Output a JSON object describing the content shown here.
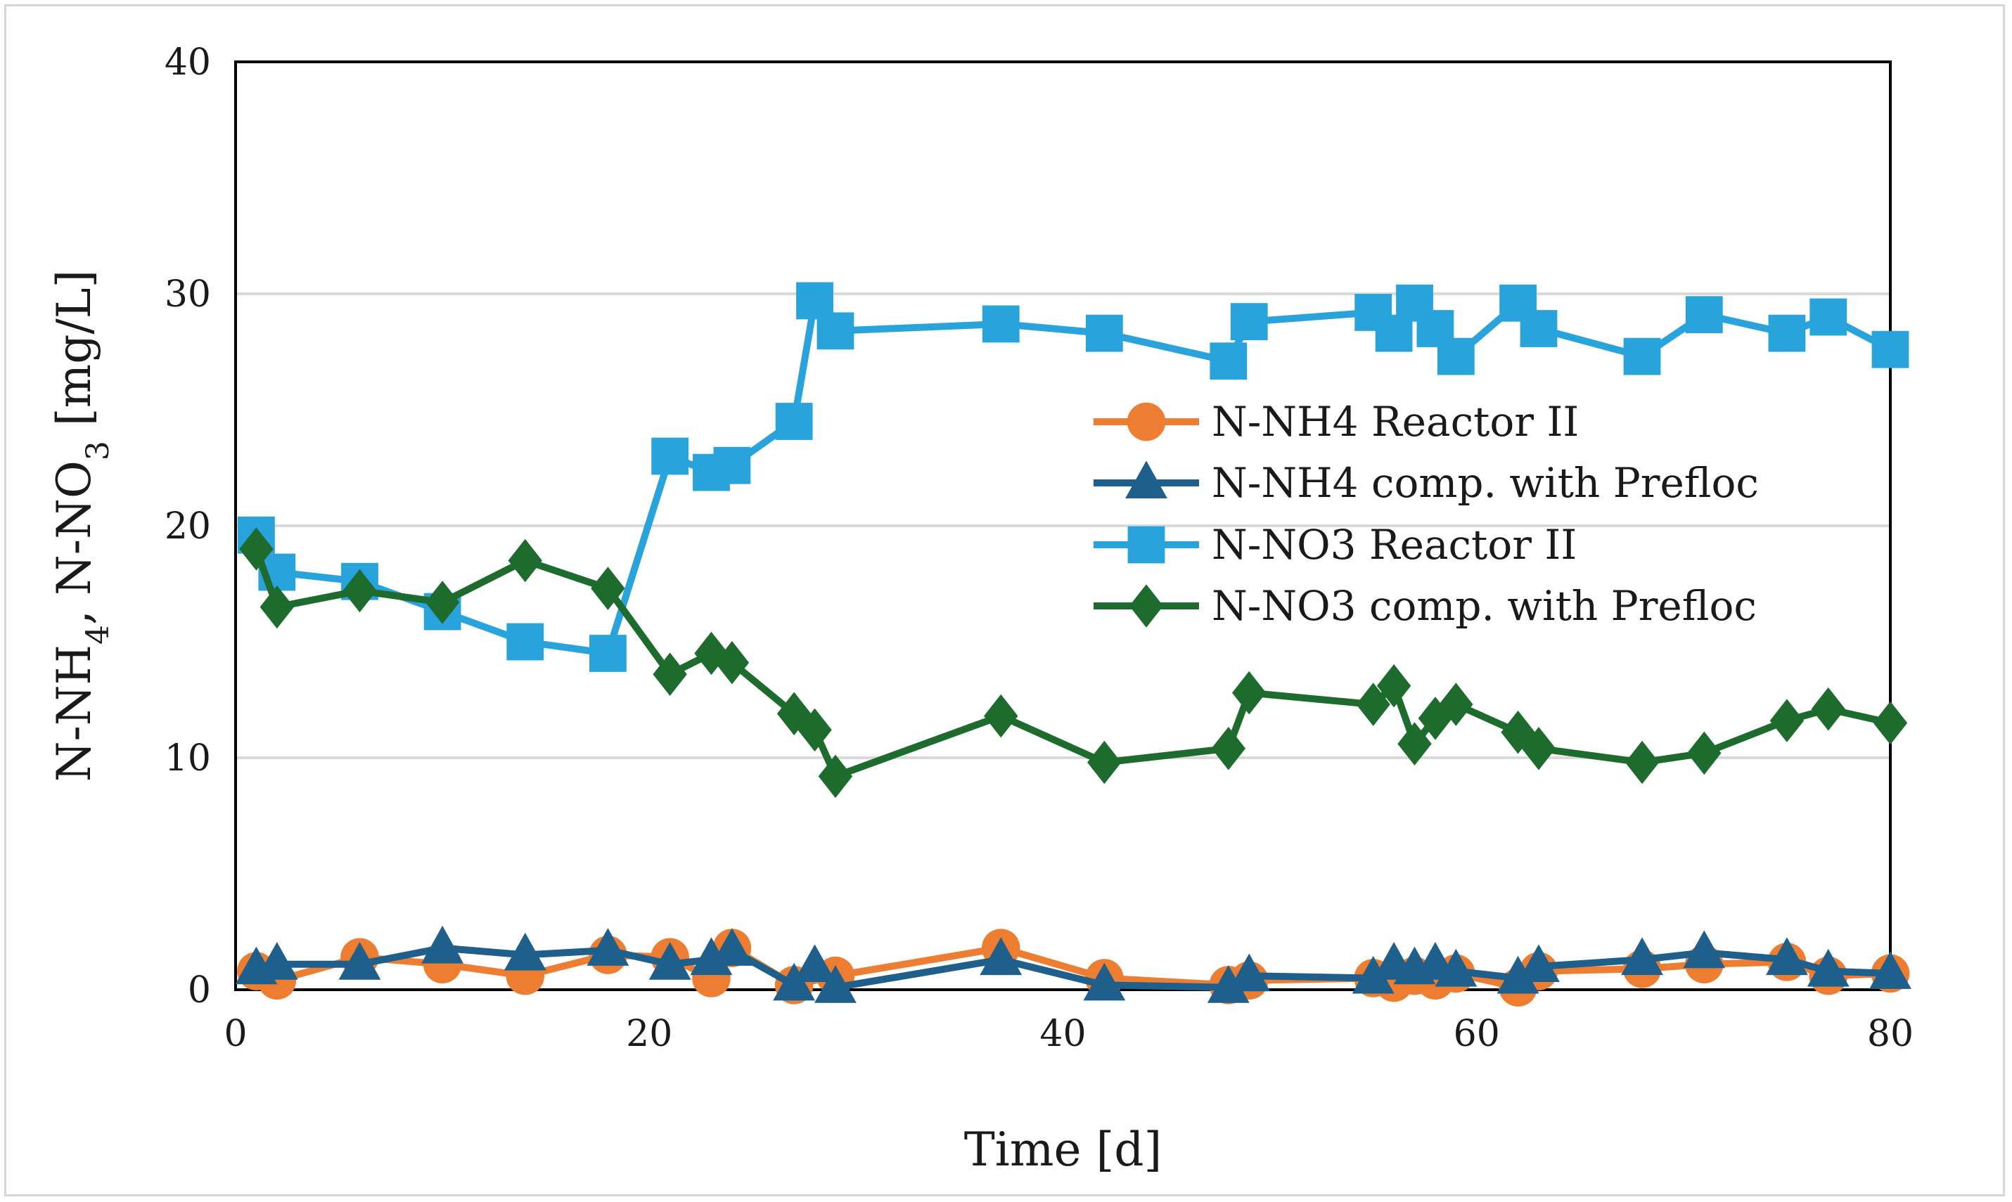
{
  "chart_data": {
    "type": "line",
    "title": "",
    "xlabel": "Time [d]",
    "ylabel_parts": [
      "N-NH",
      "4",
      ", N-NO",
      "3",
      " [mg/L]"
    ],
    "xlim": [
      0,
      80
    ],
    "ylim": [
      0,
      40
    ],
    "x_ticks": [
      "0",
      "20",
      "40",
      "60",
      "80"
    ],
    "y_ticks": [
      "0",
      "10",
      "20",
      "30",
      "40"
    ],
    "grid": "horizontal",
    "legend_position": "right-middle",
    "series": [
      {
        "name": "N-NH4 Reactor II",
        "color": "#ed7d31",
        "marker": "circle",
        "x": [
          1,
          2,
          6,
          10,
          14,
          18,
          21,
          23,
          24,
          27,
          29,
          37,
          42,
          48,
          49,
          55,
          56,
          57,
          58,
          59,
          62,
          63,
          68,
          71,
          75,
          77,
          80
        ],
        "y": [
          0.8,
          0.4,
          1.4,
          1.1,
          0.6,
          1.5,
          1.4,
          0.5,
          1.8,
          0.2,
          0.6,
          1.8,
          0.5,
          0.2,
          0.4,
          0.5,
          0.3,
          0.6,
          0.4,
          0.7,
          0.1,
          0.8,
          0.9,
          1.1,
          1.2,
          0.6,
          0.7
        ]
      },
      {
        "name": "N-NH4 comp. with Prefloc",
        "color": "#1f5f8b",
        "marker": "triangle",
        "x": [
          1,
          2,
          6,
          10,
          14,
          18,
          21,
          23,
          24,
          27,
          28,
          29,
          37,
          42,
          48,
          49,
          55,
          56,
          57,
          58,
          59,
          62,
          63,
          68,
          71,
          75,
          77,
          80
        ],
        "y": [
          0.9,
          1.1,
          1.1,
          1.8,
          1.5,
          1.7,
          1.1,
          1.3,
          1.7,
          0.2,
          1.0,
          0.1,
          1.3,
          0.2,
          0.1,
          0.6,
          0.5,
          1.1,
          0.9,
          1.1,
          0.8,
          0.5,
          1.0,
          1.3,
          1.6,
          1.3,
          0.8,
          0.7
        ]
      },
      {
        "name": "N-NO3 Reactor II",
        "color": "#29a3dc",
        "marker": "square",
        "x": [
          1,
          2,
          6,
          10,
          14,
          18,
          21,
          23,
          24,
          27,
          28,
          29,
          37,
          42,
          48,
          49,
          55,
          56,
          57,
          58,
          59,
          62,
          63,
          68,
          71,
          75,
          77,
          80
        ],
        "y": [
          19.6,
          18.0,
          17.6,
          16.3,
          15.0,
          14.5,
          23.0,
          22.3,
          22.6,
          24.5,
          29.7,
          28.4,
          28.7,
          28.3,
          27.1,
          28.8,
          29.2,
          28.3,
          29.6,
          28.5,
          27.3,
          29.6,
          28.5,
          27.3,
          29.1,
          28.3,
          29.0,
          27.6
        ]
      },
      {
        "name": "N-NO3 comp. with Prefloc",
        "color": "#1e6b2e",
        "marker": "diamond",
        "x": [
          1,
          2,
          6,
          10,
          14,
          18,
          21,
          23,
          24,
          27,
          28,
          29,
          37,
          42,
          48,
          49,
          55,
          56,
          57,
          58,
          59,
          62,
          63,
          68,
          71,
          75,
          77,
          80
        ],
        "y": [
          19.0,
          16.5,
          17.2,
          16.7,
          18.5,
          17.3,
          13.6,
          14.5,
          14.1,
          11.9,
          11.2,
          9.2,
          11.8,
          9.8,
          10.4,
          12.8,
          12.3,
          13.1,
          10.6,
          11.7,
          12.3,
          11.1,
          10.4,
          9.8,
          10.2,
          11.6,
          12.1,
          11.5
        ]
      }
    ]
  },
  "colors": {
    "axis": "#000000",
    "grid": "#d9d9d9",
    "frame": "#d6d6d6"
  }
}
